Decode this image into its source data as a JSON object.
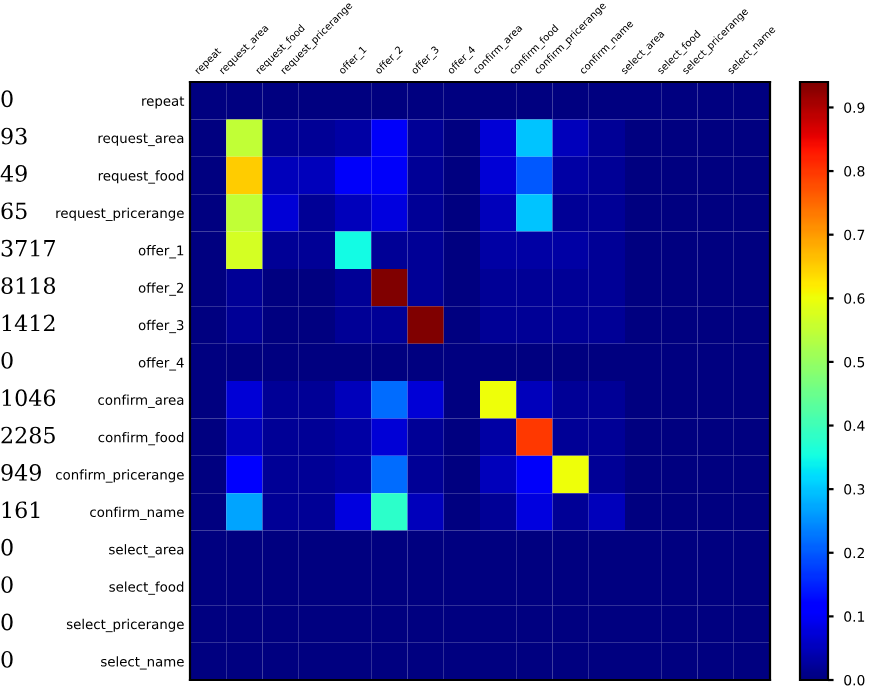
{
  "chart_data": {
    "type": "heatmap",
    "categories": [
      "repeat",
      "request_area",
      "request_food",
      "request_pricerange",
      "offer_1",
      "offer_2",
      "offer_3",
      "offer_4",
      "confirm_area",
      "confirm_food",
      "confirm_pricerange",
      "confirm_name",
      "select_area",
      "select_food",
      "select_pricerange",
      "select_name"
    ],
    "y_categories": [
      "repeat",
      "request_area",
      "request_food",
      "request_pricerange",
      "offer_1",
      "offer_2",
      "offer_3",
      "offer_4",
      "confirm_area",
      "confirm_food",
      "confirm_pricerange",
      "confirm_name",
      "select_area",
      "select_food",
      "select_pricerange",
      "select_name"
    ],
    "y2_categories": [
      "0",
      "93",
      "49",
      "65",
      "3717",
      "8118",
      "1412",
      "0",
      "1046",
      "2285",
      "949",
      "161",
      "0",
      "0",
      "0",
      "0"
    ],
    "cells": [
      [
        0,
        0,
        0,
        0,
        0,
        0,
        0,
        0,
        0,
        0,
        0,
        0,
        0,
        0,
        0,
        0
      ],
      [
        0,
        0.55,
        0.02,
        0.02,
        0.03,
        0.1,
        0.02,
        0,
        0.07,
        0.3,
        0.05,
        0.02,
        0,
        0,
        0,
        0
      ],
      [
        0,
        0.65,
        0.05,
        0.05,
        0.1,
        0.1,
        0.02,
        0,
        0.07,
        0.2,
        0.03,
        0.02,
        0,
        0,
        0,
        0
      ],
      [
        0,
        0.55,
        0.07,
        0.02,
        0.05,
        0.08,
        0.02,
        0,
        0.05,
        0.3,
        0.02,
        0.02,
        0,
        0,
        0,
        0
      ],
      [
        0,
        0.57,
        0.02,
        0.02,
        0.35,
        0.02,
        0.02,
        0,
        0.03,
        0.03,
        0.03,
        0.02,
        0,
        0,
        0,
        0
      ],
      [
        0,
        0.02,
        0,
        0,
        0.02,
        0.94,
        0.02,
        0,
        0.02,
        0.02,
        0.02,
        0.02,
        0,
        0,
        0,
        0
      ],
      [
        0,
        0.02,
        0,
        0,
        0.02,
        0.02,
        0.94,
        0,
        0.02,
        0.02,
        0.02,
        0.02,
        0,
        0,
        0,
        0
      ],
      [
        0,
        0,
        0,
        0,
        0,
        0,
        0,
        0,
        0,
        0,
        0,
        0,
        0,
        0,
        0,
        0
      ],
      [
        0,
        0.07,
        0.02,
        0.02,
        0.05,
        0.22,
        0.07,
        0,
        0.6,
        0.05,
        0.02,
        0.02,
        0,
        0,
        0,
        0
      ],
      [
        0,
        0.05,
        0.02,
        0.02,
        0.03,
        0.07,
        0.02,
        0,
        0.03,
        0.8,
        0.02,
        0.02,
        0,
        0,
        0,
        0
      ],
      [
        0,
        0.12,
        0.02,
        0.02,
        0.03,
        0.22,
        0.02,
        0,
        0.05,
        0.1,
        0.6,
        0.02,
        0,
        0,
        0,
        0
      ],
      [
        0,
        0.27,
        0.02,
        0.02,
        0.08,
        0.38,
        0.05,
        0,
        0.02,
        0.08,
        0.02,
        0.05,
        0,
        0,
        0,
        0
      ],
      [
        0,
        0,
        0,
        0,
        0,
        0,
        0,
        0,
        0,
        0,
        0,
        0,
        0,
        0,
        0,
        0
      ],
      [
        0,
        0,
        0,
        0,
        0,
        0,
        0,
        0,
        0,
        0,
        0,
        0,
        0,
        0,
        0,
        0
      ],
      [
        0,
        0,
        0,
        0,
        0,
        0,
        0,
        0,
        0,
        0,
        0,
        0,
        0,
        0,
        0,
        0
      ],
      [
        0,
        0,
        0,
        0,
        0,
        0,
        0,
        0,
        0,
        0,
        0,
        0,
        0,
        0,
        0,
        0
      ]
    ],
    "clim": [
      0,
      0.94
    ],
    "cticks": [
      {
        "value": 0,
        "label": "0.0"
      },
      {
        "value": 0.1,
        "label": "0.1"
      },
      {
        "value": 0.2,
        "label": "0.2"
      },
      {
        "value": 0.3,
        "label": "0.3"
      },
      {
        "value": 0.4,
        "label": "0.4"
      },
      {
        "value": 0.5,
        "label": "0.5"
      },
      {
        "value": 0.6,
        "label": "0.6"
      },
      {
        "value": 0.7,
        "label": "0.7"
      },
      {
        "value": 0.8,
        "label": "0.8"
      },
      {
        "value": 0.9,
        "label": "0.9"
      }
    ]
  }
}
